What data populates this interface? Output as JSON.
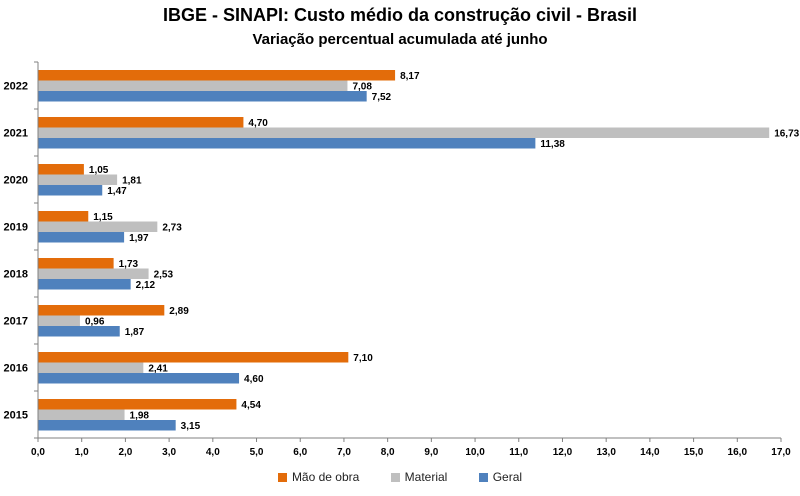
{
  "chart_data": {
    "type": "bar",
    "orientation": "horizontal",
    "title": "IBGE - SINAPI: Custo médio da construção civil - Brasil",
    "subtitle": "Variação percentual acumulada até junho",
    "categories": [
      "2022",
      "2021",
      "2020",
      "2019",
      "2018",
      "2017",
      "2016",
      "2015"
    ],
    "series": [
      {
        "name": "Mão de obra",
        "color": "#E36C0A",
        "values": [
          8.17,
          4.7,
          1.05,
          1.15,
          1.73,
          2.89,
          7.1,
          4.54
        ],
        "labels": [
          "8,17",
          "4,70",
          "1,05",
          "1,15",
          "1,73",
          "2,89",
          "7,10",
          "4,54"
        ]
      },
      {
        "name": "Material",
        "color": "#BFBFBF",
        "values": [
          7.08,
          16.73,
          1.81,
          2.73,
          2.53,
          0.96,
          2.41,
          1.98
        ],
        "labels": [
          "7,08",
          "16,73",
          "1,81",
          "2,73",
          "2,53",
          "0,96",
          "2,41",
          "1,98"
        ]
      },
      {
        "name": "Geral",
        "color": "#4F81BD",
        "values": [
          7.52,
          11.38,
          1.47,
          1.97,
          2.12,
          1.87,
          4.6,
          3.15
        ],
        "labels": [
          "7,52",
          "11,38",
          "1,47",
          "1,97",
          "2,12",
          "1,87",
          "4,60",
          "3,15"
        ]
      }
    ],
    "xlim": [
      0,
      17
    ],
    "xticks": [
      "0,0",
      "1,0",
      "2,0",
      "3,0",
      "4,0",
      "5,0",
      "6,0",
      "7,0",
      "8,0",
      "9,0",
      "10,0",
      "11,0",
      "12,0",
      "13,0",
      "14,0",
      "15,0",
      "16,0",
      "17,0"
    ],
    "xlabel": "",
    "ylabel": "",
    "grid": false,
    "legend_position": "bottom"
  }
}
